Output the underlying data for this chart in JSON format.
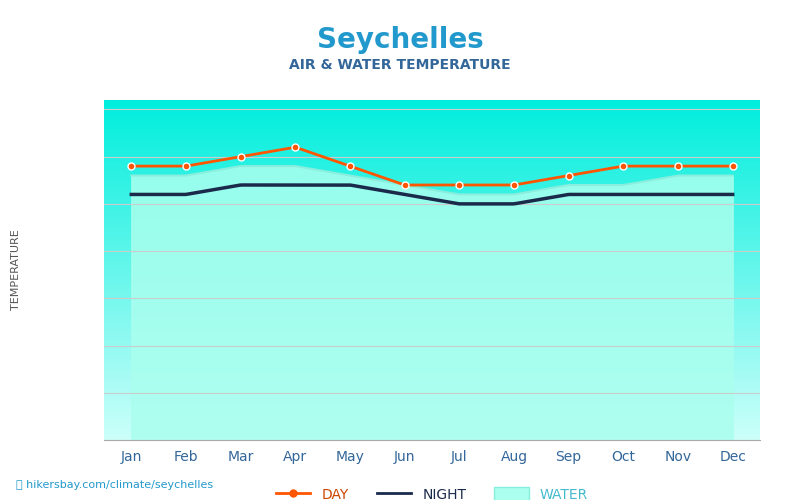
{
  "title": "Seychelles",
  "subtitle": "AIR & WATER TEMPERATURE",
  "months": [
    "Jan",
    "Feb",
    "Mar",
    "Apr",
    "May",
    "Jun",
    "Jul",
    "Aug",
    "Sep",
    "Oct",
    "Nov",
    "Dec"
  ],
  "day_temp": [
    29,
    29,
    30,
    31,
    29,
    27,
    27,
    27,
    28,
    29,
    29,
    29
  ],
  "night_temp": [
    26,
    26,
    27,
    27,
    27,
    26,
    25,
    25,
    26,
    26,
    26,
    26
  ],
  "water_temp": [
    28,
    28,
    29,
    29,
    28,
    27,
    26,
    26,
    27,
    27,
    28,
    28
  ],
  "ylim": [
    0,
    36
  ],
  "yticks_c": [
    0,
    5,
    10,
    15,
    20,
    25,
    30,
    35
  ],
  "yticks_f": [
    32,
    41,
    50,
    59,
    68,
    77,
    86,
    95
  ],
  "ytick_colors": [
    "#00cccc",
    "#00cccc",
    "#99cc00",
    "#99cc00",
    "#ffcc00",
    "#ff9900",
    "#ff6600",
    "#ff3300"
  ],
  "title_color": "#2299cc",
  "subtitle_color": "#336699",
  "day_color": "#ff5500",
  "night_color": "#1a2a4a",
  "water_fill_top": "#aaffee",
  "water_fill_bottom": "#00ddcc",
  "grid_color": "#cccccc",
  "bg_color": "#ffffff",
  "axis_label_color": "#336699",
  "tick_label_color": "#336699",
  "footer_text": "hikersbay.com/climate/seychelles",
  "legend_day": "DAY",
  "legend_night": "NIGHT",
  "legend_water": "WATER"
}
